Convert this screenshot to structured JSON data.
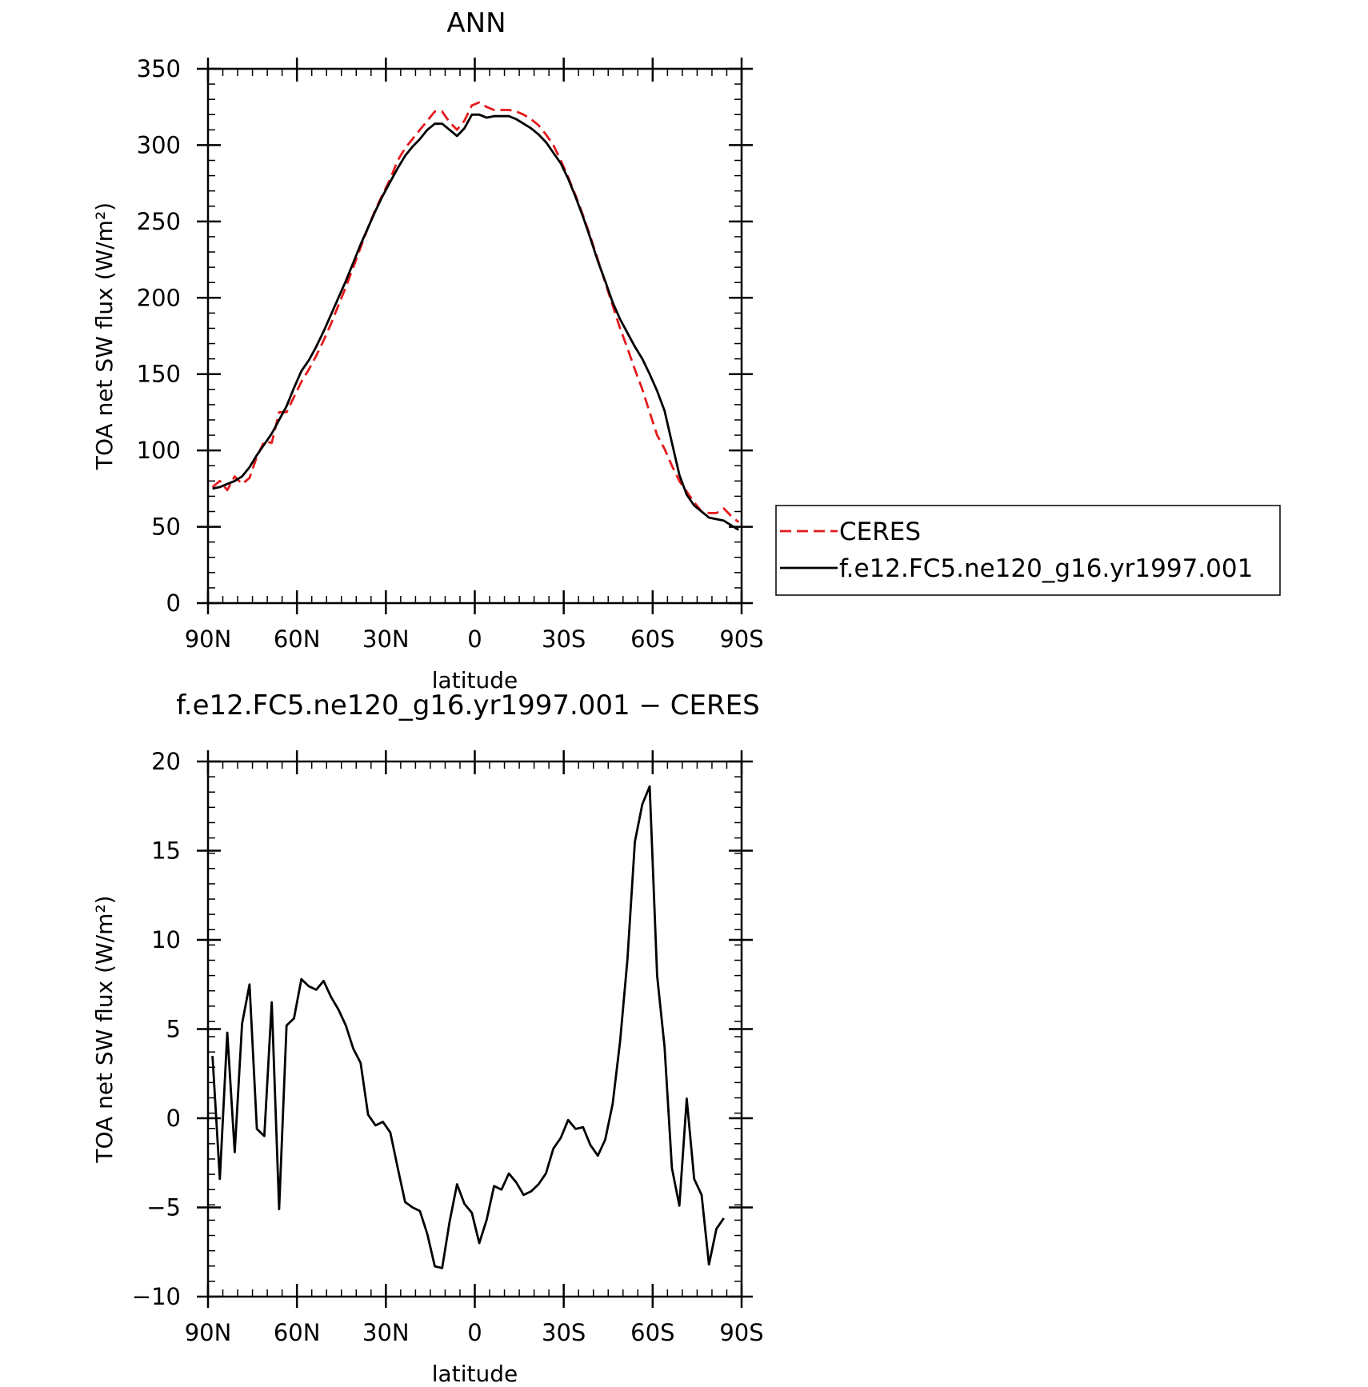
{
  "chart_data": [
    {
      "type": "line",
      "title": "ANN",
      "xlabel": "latitude",
      "ylabel": "TOA net SW flux (W/m²)",
      "xlim": [
        90,
        -90
      ],
      "ylim": [
        0,
        350
      ],
      "xticks": [
        {
          "value": 90,
          "label": "90N"
        },
        {
          "value": 60,
          "label": "60N"
        },
        {
          "value": 30,
          "label": "30N"
        },
        {
          "value": 0,
          "label": "0"
        },
        {
          "value": -30,
          "label": "30S"
        },
        {
          "value": -60,
          "label": "60S"
        },
        {
          "value": -90,
          "label": "90S"
        }
      ],
      "yticks": [
        {
          "value": 0,
          "label": "0"
        },
        {
          "value": 50,
          "label": "50"
        },
        {
          "value": 100,
          "label": "100"
        },
        {
          "value": 150,
          "label": "150"
        },
        {
          "value": 200,
          "label": "200"
        },
        {
          "value": 250,
          "label": "250"
        },
        {
          "value": 300,
          "label": "300"
        },
        {
          "value": 350,
          "label": "350"
        }
      ],
      "grid": false,
      "legend_position": "right",
      "series": [
        {
          "name": "CERES",
          "color": "#e41a1c",
          "dash": "dashed",
          "points": [
            [
              88.5,
              76
            ],
            [
              86,
              80
            ],
            [
              83.5,
              74
            ],
            [
              81,
              83
            ],
            [
              78.5,
              78
            ],
            [
              76,
              82
            ],
            [
              73.5,
              96
            ],
            [
              71,
              106
            ],
            [
              68.5,
              105
            ],
            [
              66,
              125
            ],
            [
              63.5,
              125
            ],
            [
              61,
              135
            ],
            [
              58.5,
              145
            ],
            [
              56,
              153
            ],
            [
              53.5,
              162
            ],
            [
              51,
              172
            ],
            [
              48.5,
              183
            ],
            [
              46,
              195
            ],
            [
              43.5,
              207
            ],
            [
              41,
              220
            ],
            [
              38.5,
              233
            ],
            [
              36,
              246
            ],
            [
              33.5,
              258
            ],
            [
              31,
              268
            ],
            [
              28.5,
              278
            ],
            [
              26,
              290
            ],
            [
              23.5,
              298
            ],
            [
              21,
              304
            ],
            [
              18.5,
              310
            ],
            [
              16,
              316
            ],
            [
              13.5,
              322
            ],
            [
              11,
              322
            ],
            [
              8.5,
              315
            ],
            [
              6,
              310
            ],
            [
              3.5,
              316
            ],
            [
              1,
              326
            ],
            [
              -1.5,
              328
            ],
            [
              -4,
              325
            ],
            [
              -6.5,
              323
            ],
            [
              -9,
              323
            ],
            [
              -11.5,
              323
            ],
            [
              -14,
              322
            ],
            [
              -16.5,
              320
            ],
            [
              -19,
              317
            ],
            [
              -21.5,
              313
            ],
            [
              -24,
              307
            ],
            [
              -26.5,
              300
            ],
            [
              -29,
              290
            ],
            [
              -31.5,
              279
            ],
            [
              -34,
              267
            ],
            [
              -36.5,
              254
            ],
            [
              -39,
              240
            ],
            [
              -41.5,
              225
            ],
            [
              -44,
              210
            ],
            [
              -46.5,
              195
            ],
            [
              -49,
              180
            ],
            [
              -51.5,
              167
            ],
            [
              -54,
              153
            ],
            [
              -56.5,
              140
            ],
            [
              -59,
              125
            ],
            [
              -61.5,
              110
            ],
            [
              -64,
              101
            ],
            [
              -66.5,
              90
            ],
            [
              -69,
              80
            ],
            [
              -71.5,
              73
            ],
            [
              -74,
              66
            ],
            [
              -76.5,
              60
            ],
            [
              -79,
              59
            ],
            [
              -81.5,
              59
            ],
            [
              -84,
              62
            ],
            [
              -86.5,
              57
            ],
            [
              -89,
              53
            ]
          ]
        },
        {
          "name": "f.e12.FC5.ne120_g16.yr1997.001",
          "color": "#000000",
          "dash": "solid",
          "points": [
            [
              88.5,
              75
            ],
            [
              86,
              76
            ],
            [
              83.5,
              78
            ],
            [
              81,
              80
            ],
            [
              78.5,
              83
            ],
            [
              76,
              89
            ],
            [
              73.5,
              97
            ],
            [
              71,
              104
            ],
            [
              68.5,
              111
            ],
            [
              66,
              120
            ],
            [
              63.5,
              129
            ],
            [
              61,
              141
            ],
            [
              58.5,
              152
            ],
            [
              56,
              159
            ],
            [
              53.5,
              168
            ],
            [
              51,
              178
            ],
            [
              48.5,
              189
            ],
            [
              46,
              200
            ],
            [
              43.5,
              211
            ],
            [
              41,
              223
            ],
            [
              38.5,
              235
            ],
            [
              36,
              246
            ],
            [
              33.5,
              257
            ],
            [
              31,
              267
            ],
            [
              28.5,
              276
            ],
            [
              26,
              285
            ],
            [
              23.5,
              293
            ],
            [
              21,
              299
            ],
            [
              18.5,
              304
            ],
            [
              16,
              310
            ],
            [
              13.5,
              314
            ],
            [
              11,
              314
            ],
            [
              8.5,
              310
            ],
            [
              6,
              306
            ],
            [
              3.5,
              311
            ],
            [
              1,
              320
            ],
            [
              -1.5,
              320
            ],
            [
              -4,
              318
            ],
            [
              -6.5,
              319
            ],
            [
              -9,
              319
            ],
            [
              -11.5,
              319
            ],
            [
              -14,
              317
            ],
            [
              -16.5,
              314
            ],
            [
              -19,
              311
            ],
            [
              -21.5,
              307
            ],
            [
              -24,
              302
            ],
            [
              -26.5,
              295
            ],
            [
              -29,
              288
            ],
            [
              -31.5,
              278
            ],
            [
              -34,
              266
            ],
            [
              -36.5,
              253
            ],
            [
              -39,
              239
            ],
            [
              -41.5,
              224
            ],
            [
              -44,
              211
            ],
            [
              -46.5,
              197
            ],
            [
              -49,
              186
            ],
            [
              -51.5,
              177
            ],
            [
              -54,
              168
            ],
            [
              -56.5,
              160
            ],
            [
              -59,
              150
            ],
            [
              -61.5,
              139
            ],
            [
              -64,
              126
            ],
            [
              -66.5,
              105
            ],
            [
              -69,
              84
            ],
            [
              -71.5,
              71
            ],
            [
              -74,
              64
            ],
            [
              -76.5,
              60
            ],
            [
              -79,
              56
            ],
            [
              -81.5,
              55
            ],
            [
              -84,
              54
            ],
            [
              -86.5,
              51
            ],
            [
              -89,
              48
            ]
          ]
        }
      ]
    },
    {
      "type": "line",
      "title": "f.e12.FC5.ne120_g16.yr1997.001 − CERES",
      "xlabel": "latitude",
      "ylabel": "TOA net SW flux (W/m²)",
      "xlim": [
        90,
        -90
      ],
      "ylim": [
        -10,
        20
      ],
      "xticks": [
        {
          "value": 90,
          "label": "90N"
        },
        {
          "value": 60,
          "label": "60N"
        },
        {
          "value": 30,
          "label": "30N"
        },
        {
          "value": 0,
          "label": "0"
        },
        {
          "value": -30,
          "label": "30S"
        },
        {
          "value": -60,
          "label": "60S"
        },
        {
          "value": -90,
          "label": "90S"
        }
      ],
      "yticks": [
        {
          "value": -10,
          "label": "−10"
        },
        {
          "value": -5,
          "label": "−5"
        },
        {
          "value": 0,
          "label": "0"
        },
        {
          "value": 5,
          "label": "5"
        },
        {
          "value": 10,
          "label": "10"
        },
        {
          "value": 15,
          "label": "15"
        },
        {
          "value": 20,
          "label": "20"
        }
      ],
      "grid": false,
      "series": [
        {
          "color": "#000000",
          "dash": "solid",
          "points": [
            [
              88.5,
              3.5
            ],
            [
              86,
              -3.4
            ],
            [
              83.5,
              4.8
            ],
            [
              81,
              -1.9
            ],
            [
              78.5,
              5.3
            ],
            [
              76,
              7.5
            ],
            [
              73.5,
              -0.6
            ],
            [
              71,
              -1.0
            ],
            [
              68.5,
              6.5
            ],
            [
              66,
              -5.1
            ],
            [
              63.5,
              5.2
            ],
            [
              61,
              5.6
            ],
            [
              58.5,
              7.8
            ],
            [
              56,
              7.4
            ],
            [
              53.5,
              7.2
            ],
            [
              51,
              7.7
            ],
            [
              48.5,
              6.8
            ],
            [
              46,
              6.1
            ],
            [
              43.5,
              5.2
            ],
            [
              41,
              3.9
            ],
            [
              38.5,
              3.1
            ],
            [
              36,
              0.2
            ],
            [
              33.5,
              -0.4
            ],
            [
              31,
              -0.2
            ],
            [
              28.5,
              -0.8
            ],
            [
              26,
              -2.8
            ],
            [
              23.5,
              -4.7
            ],
            [
              21,
              -5.0
            ],
            [
              18.5,
              -5.2
            ],
            [
              16,
              -6.5
            ],
            [
              13.5,
              -8.3
            ],
            [
              11,
              -8.4
            ],
            [
              8.5,
              -5.8
            ],
            [
              6,
              -3.7
            ],
            [
              3.5,
              -4.8
            ],
            [
              1,
              -5.3
            ],
            [
              -1.5,
              -7.0
            ],
            [
              -4,
              -5.7
            ],
            [
              -6.5,
              -3.8
            ],
            [
              -9,
              -4.0
            ],
            [
              -11.5,
              -3.1
            ],
            [
              -14,
              -3.6
            ],
            [
              -16.5,
              -4.3
            ],
            [
              -19,
              -4.1
            ],
            [
              -21.5,
              -3.7
            ],
            [
              -24,
              -3.1
            ],
            [
              -26.5,
              -1.7
            ],
            [
              -29,
              -1.1
            ],
            [
              -31.5,
              -0.1
            ],
            [
              -34,
              -0.6
            ],
            [
              -36.5,
              -0.5
            ],
            [
              -39,
              -1.5
            ],
            [
              -41.5,
              -2.1
            ],
            [
              -44,
              -1.2
            ],
            [
              -46.5,
              0.8
            ],
            [
              -49,
              4.3
            ],
            [
              -51.5,
              8.9
            ],
            [
              -54,
              15.5
            ],
            [
              -56.5,
              17.6
            ],
            [
              -59,
              18.6
            ],
            [
              -61.5,
              8.0
            ],
            [
              -64,
              4.0
            ],
            [
              -66.5,
              -2.8
            ],
            [
              -69,
              -4.9
            ],
            [
              -71.5,
              1.1
            ],
            [
              -74,
              -3.4
            ],
            [
              -76.5,
              -4.3
            ],
            [
              -79,
              -8.2
            ],
            [
              -81.5,
              -6.2
            ],
            [
              -84,
              -5.6
            ]
          ]
        }
      ]
    }
  ]
}
